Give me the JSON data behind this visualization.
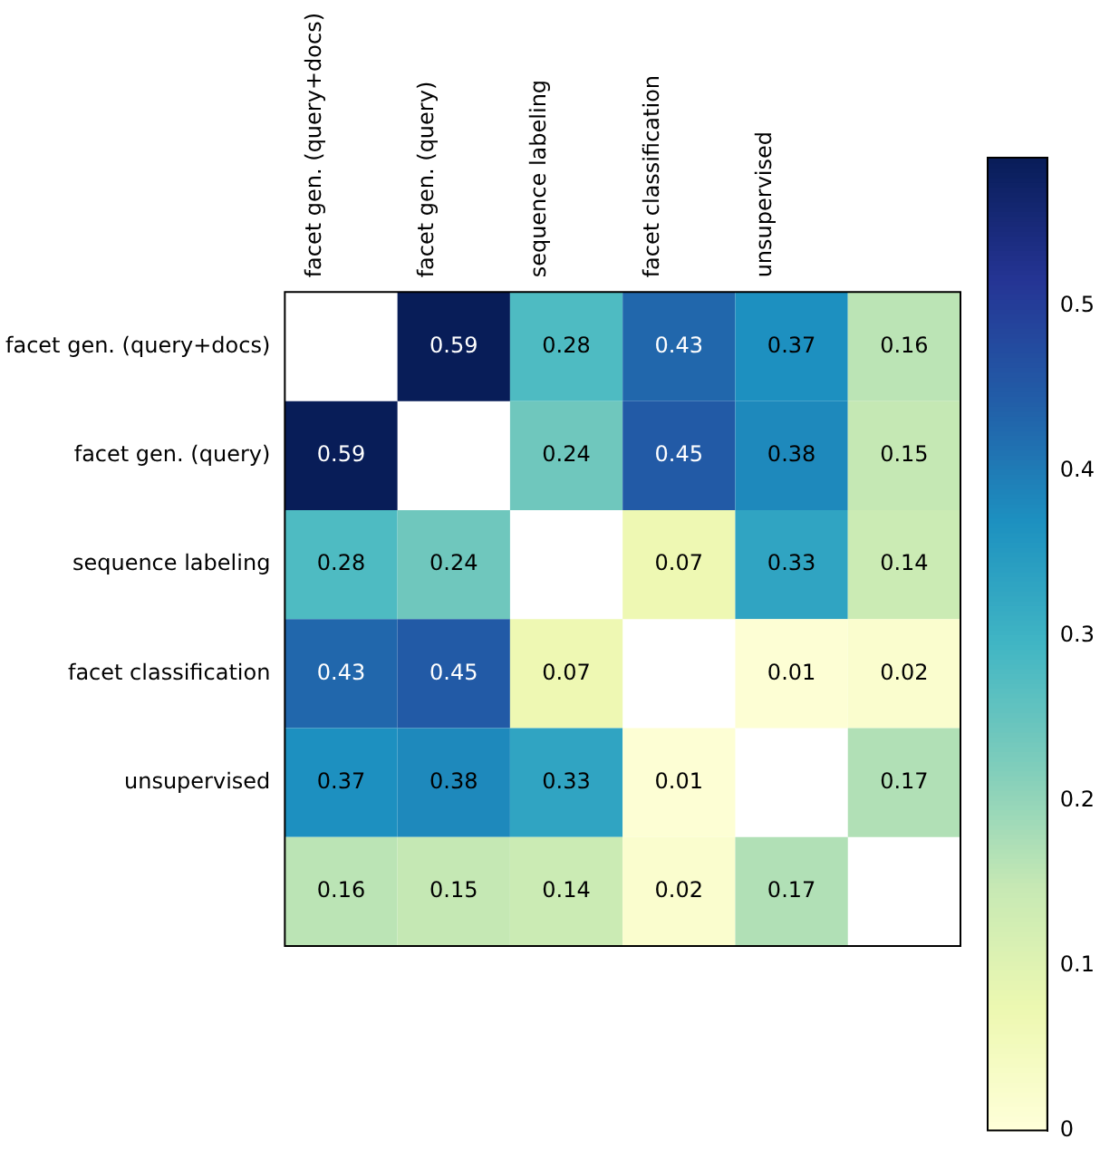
{
  "chart_data": {
    "type": "heatmap",
    "categories": [
      "facet gen. (query+docs)",
      "facet gen. (query)",
      "sequence labeling",
      "facet classification",
      "unsupervised",
      null
    ],
    "y_categories": [
      "facet gen. (query+docs)",
      "facet gen. (query)",
      "sequence labeling",
      "facet classification",
      "unsupervised",
      null
    ],
    "cells": [
      [
        null,
        0.59,
        0.28,
        0.43,
        0.37,
        0.16
      ],
      [
        0.59,
        null,
        0.24,
        0.45,
        0.38,
        0.15
      ],
      [
        0.28,
        0.24,
        null,
        0.07,
        0.33,
        0.14
      ],
      [
        0.43,
        0.45,
        0.07,
        null,
        0.01,
        0.02
      ],
      [
        0.37,
        0.38,
        0.33,
        0.01,
        null,
        0.17
      ],
      [
        0.16,
        0.15,
        0.14,
        0.02,
        0.17,
        null
      ]
    ],
    "cell_labels": [
      [
        null,
        "0.59",
        "0.28",
        "0.43",
        "0.37",
        "0.16"
      ],
      [
        "0.59",
        null,
        "0.24",
        "0.45",
        "0.38",
        "0.15"
      ],
      [
        "0.28",
        "0.24",
        null,
        "0.07",
        "0.33",
        "0.14"
      ],
      [
        "0.43",
        "0.45",
        "0.07",
        null,
        "0.01",
        "0.02"
      ],
      [
        "0.37",
        "0.38",
        "0.33",
        "0.01",
        null,
        "0.17"
      ],
      [
        "0.16",
        "0.15",
        "0.14",
        "0.02",
        "0.17",
        null
      ]
    ],
    "clim": [
      0,
      0.59
    ],
    "cticks": [
      0,
      0.1,
      0.2,
      0.3,
      0.4,
      0.5
    ]
  }
}
